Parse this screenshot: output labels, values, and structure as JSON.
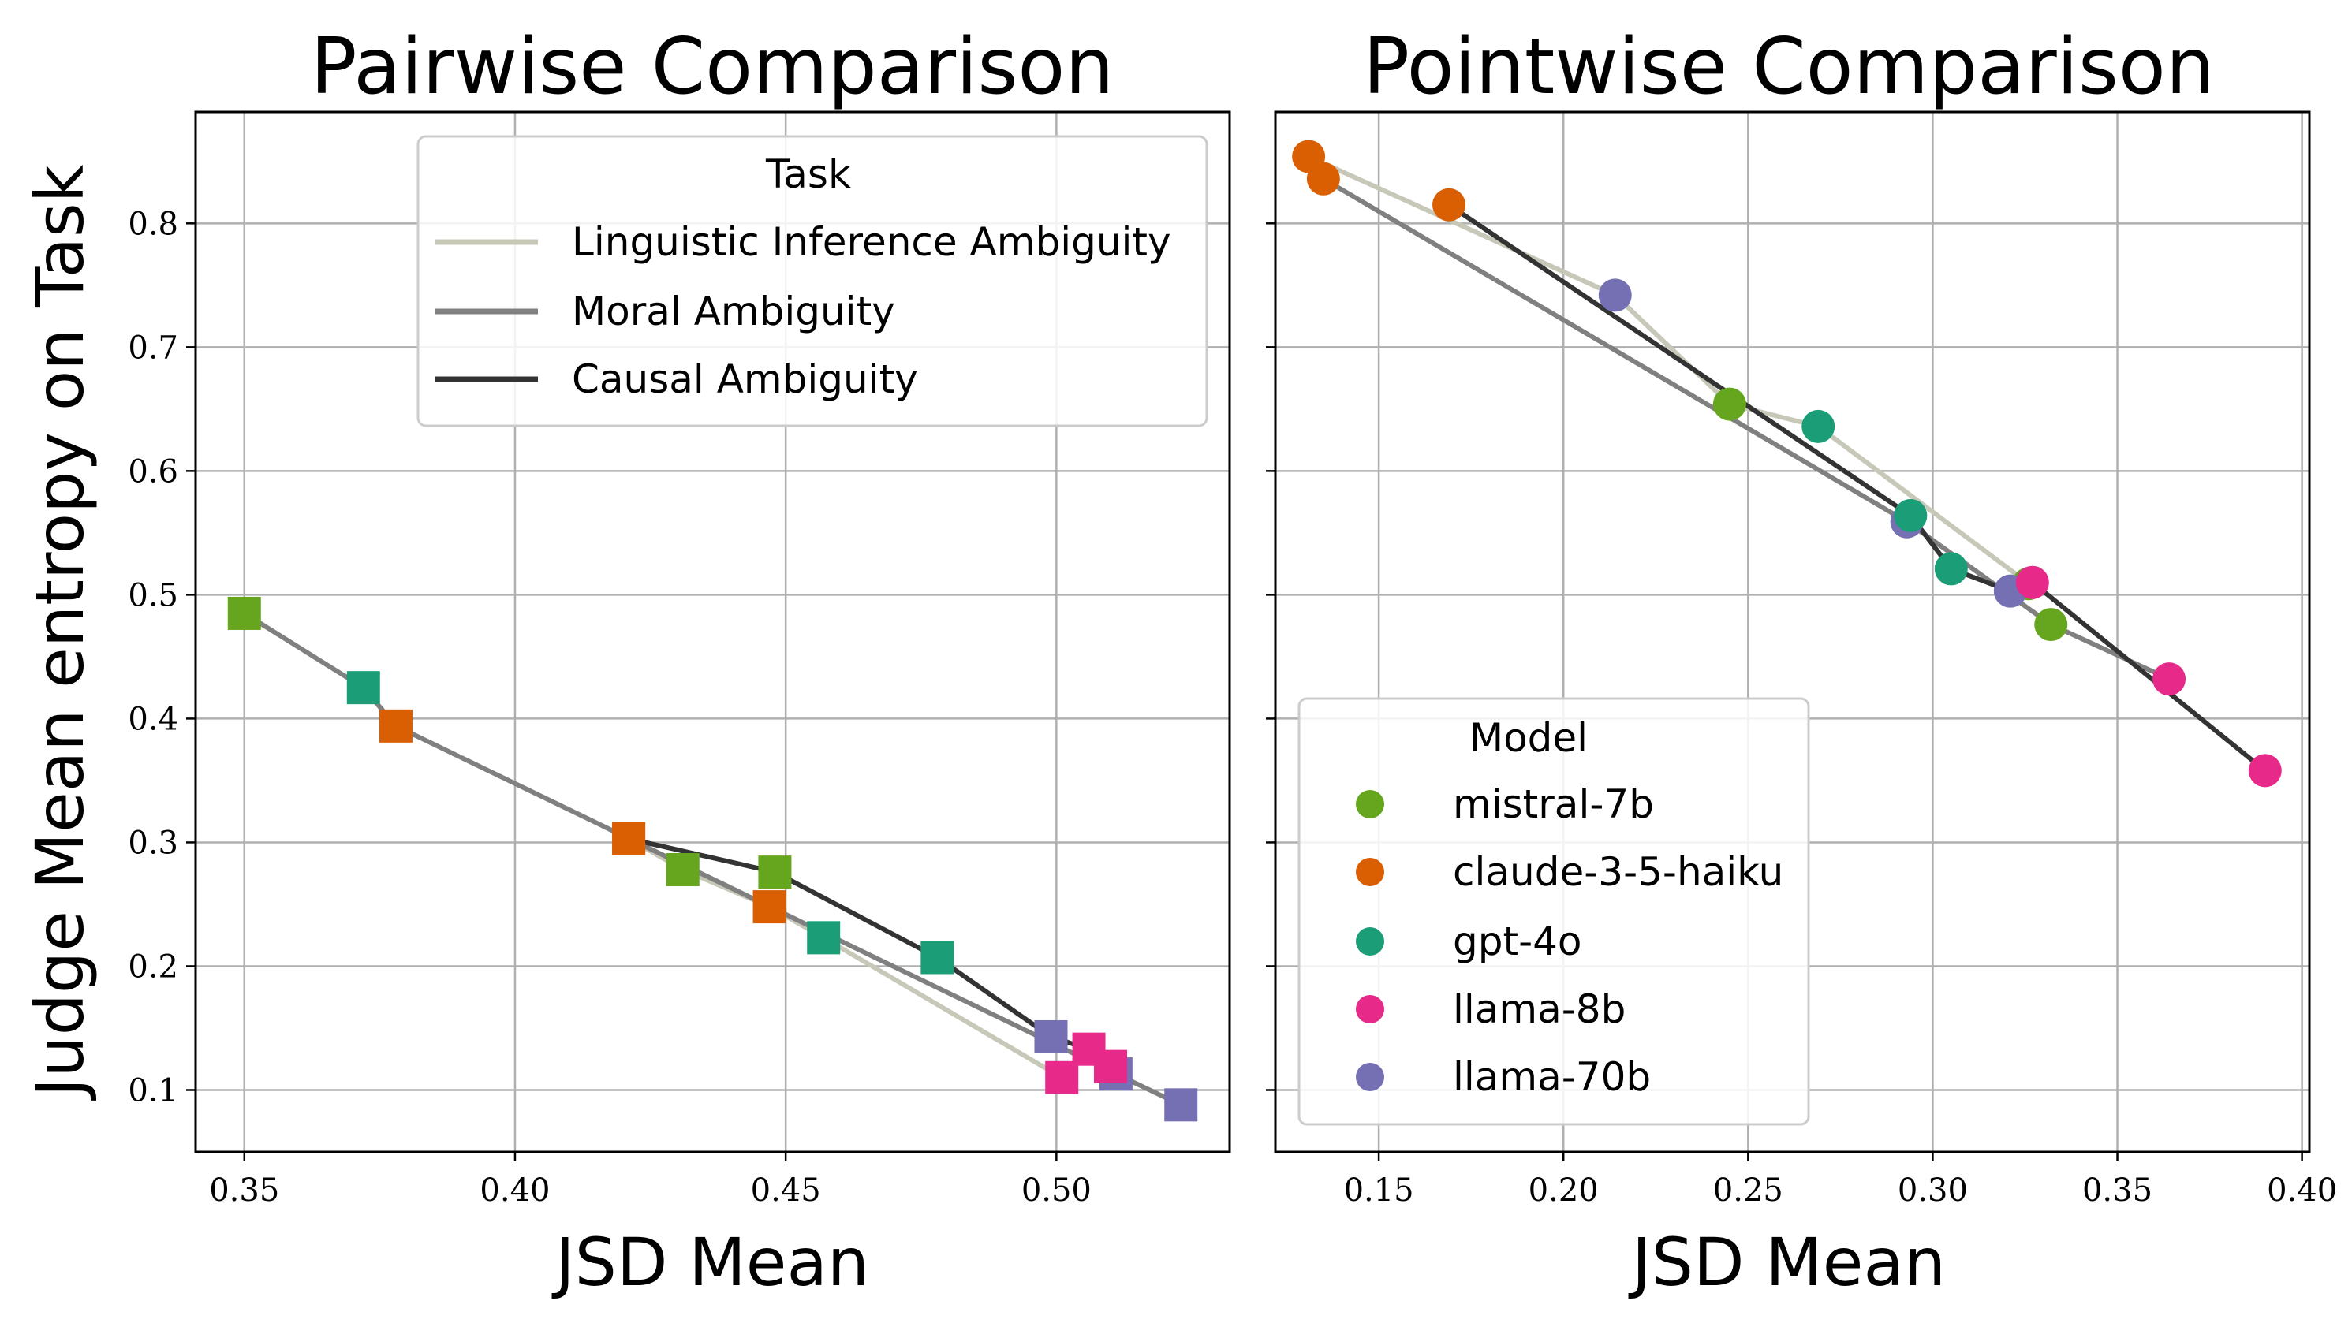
{
  "figure": {
    "ylabel": "Judge Mean entropy on Task"
  },
  "colors": {
    "models": {
      "mistral-7b": "#66a61e",
      "claude-3-5-haiku": "#d95f02",
      "gpt-4o": "#1b9e77",
      "llama-8b": "#e7298a",
      "llama-70b": "#7570b3"
    },
    "tasks": {
      "Linguistic Inference Ambiguity": "#c8c8b9",
      "Moral Ambiguity": "#808080",
      "Causal Ambiguity": "#333333"
    }
  },
  "chart_data": [
    {
      "type": "line",
      "title": "Pairwise Comparison",
      "xlabel": "JSD Mean",
      "ylabel": "Judge Mean entropy on Task",
      "marker": "square",
      "xlim": [
        0.341,
        0.532
      ],
      "ylim": [
        0.05,
        0.89
      ],
      "xticks": [
        0.35,
        0.4,
        0.45,
        0.5
      ],
      "xtick_labels": [
        "0.35",
        "0.40",
        "0.45",
        "0.50"
      ],
      "yticks": [
        0.1,
        0.2,
        0.3,
        0.4,
        0.5,
        0.6,
        0.7,
        0.8
      ],
      "ytick_labels": [
        "0.1",
        "0.2",
        "0.3",
        "0.4",
        "0.5",
        "0.6",
        "0.7",
        "0.8"
      ],
      "grid": true,
      "legend": {
        "title": "Task",
        "placement": "top-right",
        "entries": [
          "Linguistic Inference Ambiguity",
          "Moral Ambiguity",
          "Causal Ambiguity"
        ]
      },
      "series": [
        {
          "name": "Linguistic Inference Ambiguity",
          "points": [
            {
              "model": "claude-3-5-haiku",
              "x": 0.421,
              "y": 0.303
            },
            {
              "model": "mistral-7b",
              "x": 0.431,
              "y": 0.278
            },
            {
              "model": "claude-3-5-haiku",
              "x": 0.447,
              "y": 0.248
            },
            {
              "model": "gpt-4o",
              "x": 0.457,
              "y": 0.223
            },
            {
              "model": "llama-8b",
              "x": 0.501,
              "y": 0.11
            }
          ]
        },
        {
          "name": "Moral Ambiguity",
          "points": [
            {
              "model": "mistral-7b",
              "x": 0.35,
              "y": 0.485
            },
            {
              "model": "gpt-4o",
              "x": 0.372,
              "y": 0.425
            },
            {
              "model": "claude-3-5-haiku",
              "x": 0.378,
              "y": 0.394
            },
            {
              "model": "llama-70b",
              "x": 0.511,
              "y": 0.113
            },
            {
              "model": "llama-70b",
              "x": 0.523,
              "y": 0.088
            }
          ]
        },
        {
          "name": "Causal Ambiguity",
          "points": [
            {
              "model": "claude-3-5-haiku",
              "x": 0.421,
              "y": 0.303
            },
            {
              "model": "mistral-7b",
              "x": 0.448,
              "y": 0.276
            },
            {
              "model": "gpt-4o",
              "x": 0.478,
              "y": 0.207
            },
            {
              "model": "llama-70b",
              "x": 0.499,
              "y": 0.143
            },
            {
              "model": "llama-8b",
              "x": 0.506,
              "y": 0.133
            },
            {
              "model": "llama-8b",
              "x": 0.51,
              "y": 0.119
            }
          ]
        }
      ]
    },
    {
      "type": "line",
      "title": "Pointwise Comparison",
      "xlabel": "JSD Mean",
      "marker": "circle",
      "xlim": [
        0.122,
        0.402
      ],
      "ylim": [
        0.05,
        0.89
      ],
      "xticks": [
        0.15,
        0.2,
        0.25,
        0.3,
        0.35,
        0.4
      ],
      "xtick_labels": [
        "0.15",
        "0.20",
        "0.25",
        "0.30",
        "0.35",
        "0.40"
      ],
      "yticks": [
        0.1,
        0.2,
        0.3,
        0.4,
        0.5,
        0.6,
        0.7,
        0.8
      ],
      "grid": true,
      "legend": {
        "title": "Model",
        "placement": "lower-left",
        "entries": [
          "mistral-7b",
          "claude-3-5-haiku",
          "gpt-4o",
          "llama-8b",
          "llama-70b"
        ]
      },
      "series": [
        {
          "name": "Linguistic Inference Ambiguity",
          "points": [
            {
              "model": "claude-3-5-haiku",
              "x": 0.131,
              "y": 0.854
            },
            {
              "model": "llama-70b",
              "x": 0.214,
              "y": 0.742
            },
            {
              "model": "mistral-7b",
              "x": 0.245,
              "y": 0.654
            },
            {
              "model": "gpt-4o",
              "x": 0.269,
              "y": 0.636
            },
            {
              "model": "mistral-7b",
              "x": 0.326,
              "y": 0.509
            }
          ]
        },
        {
          "name": "Moral Ambiguity",
          "points": [
            {
              "model": "claude-3-5-haiku",
              "x": 0.135,
              "y": 0.836
            },
            {
              "model": "llama-70b",
              "x": 0.293,
              "y": 0.559
            },
            {
              "model": "mistral-7b",
              "x": 0.332,
              "y": 0.476
            },
            {
              "model": "llama-8b",
              "x": 0.364,
              "y": 0.432
            }
          ]
        },
        {
          "name": "Causal Ambiguity",
          "points": [
            {
              "model": "claude-3-5-haiku",
              "x": 0.169,
              "y": 0.815
            },
            {
              "model": "gpt-4o",
              "x": 0.294,
              "y": 0.564
            },
            {
              "model": "gpt-4o",
              "x": 0.305,
              "y": 0.521
            },
            {
              "model": "llama-70b",
              "x": 0.321,
              "y": 0.503
            },
            {
              "model": "llama-8b",
              "x": 0.327,
              "y": 0.51
            },
            {
              "model": "llama-8b",
              "x": 0.39,
              "y": 0.358
            }
          ]
        }
      ]
    }
  ]
}
